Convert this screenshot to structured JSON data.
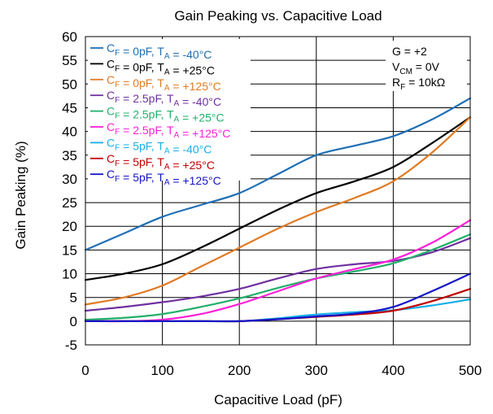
{
  "chart_data": {
    "type": "line",
    "title": "Gain Peaking vs. Capacitive Load",
    "xlabel": "Capacitive Load (pF)",
    "ylabel": "Gain Peaking (%)",
    "xlim": [
      0,
      500
    ],
    "ylim": [
      -5,
      60
    ],
    "xticks": [
      0,
      100,
      200,
      300,
      400,
      500
    ],
    "yticks": [
      -5,
      0,
      5,
      10,
      15,
      20,
      25,
      30,
      35,
      40,
      45,
      50,
      55,
      60
    ],
    "grid": true,
    "legend_position": "top-left",
    "conditions": [
      {
        "main": "G = +2",
        "sub": "",
        "rest": ""
      },
      {
        "main": "V",
        "sub": "CM",
        "rest": " = 0V"
      },
      {
        "main": "R",
        "sub": "F",
        "rest": " = 10kΩ"
      }
    ],
    "series": [
      {
        "cap": "0pF",
        "temp": "-40°C",
        "color": "#1f6fb5",
        "x": [
          0,
          50,
          100,
          150,
          200,
          250,
          300,
          350,
          400,
          450,
          500
        ],
        "values": [
          15,
          18.5,
          22,
          24.5,
          27,
          31,
          35,
          37,
          39,
          42.5,
          47
        ]
      },
      {
        "cap": "0pF",
        "temp": "+25°C",
        "color": "#000000",
        "x": [
          0,
          50,
          100,
          150,
          200,
          250,
          300,
          350,
          400,
          450,
          500
        ],
        "values": [
          8.7,
          10,
          12,
          15.5,
          19.5,
          23.5,
          27,
          29.5,
          32.5,
          37.5,
          43
        ]
      },
      {
        "cap": "0pF",
        "temp": "+125°C",
        "color": "#e07b24",
        "x": [
          0,
          50,
          100,
          150,
          200,
          250,
          300,
          350,
          400,
          450,
          500
        ],
        "values": [
          3.5,
          5,
          7.5,
          11.5,
          15.5,
          19.5,
          23,
          26,
          29.5,
          35.5,
          43
        ]
      },
      {
        "cap": "2.5pF",
        "temp": "-40°C",
        "color": "#7030a0",
        "x": [
          0,
          50,
          100,
          150,
          200,
          250,
          300,
          350,
          400,
          450,
          500
        ],
        "values": [
          2.2,
          3,
          4,
          5.2,
          6.8,
          9,
          11,
          12,
          12.7,
          14.5,
          17.5
        ]
      },
      {
        "cap": "2.5pF",
        "temp": "+25°C",
        "color": "#22b06b",
        "x": [
          0,
          50,
          100,
          150,
          200,
          250,
          300,
          350,
          400,
          450,
          500
        ],
        "values": [
          0.3,
          0.7,
          1.5,
          3,
          4.8,
          7,
          9,
          10.5,
          12.2,
          15,
          18.3
        ]
      },
      {
        "cap": "2.5pF",
        "temp": "+125°C",
        "color": "#ff1fd8",
        "x": [
          0,
          50,
          100,
          150,
          200,
          250,
          300,
          350,
          400,
          450,
          500
        ],
        "values": [
          0,
          0,
          0.3,
          1.5,
          3.6,
          6.3,
          9,
          11,
          13,
          16.5,
          21.3
        ]
      },
      {
        "cap": "5pF",
        "temp": "-40°C",
        "color": "#17aee8",
        "x": [
          0,
          50,
          100,
          150,
          200,
          250,
          300,
          350,
          400,
          450,
          500
        ],
        "values": [
          0,
          0,
          0,
          0,
          0,
          0.6,
          1.4,
          1.9,
          2.3,
          3.3,
          4.6
        ]
      },
      {
        "cap": "5pF",
        "temp": "+25°C",
        "color": "#c00000",
        "x": [
          0,
          50,
          100,
          150,
          200,
          250,
          300,
          350,
          400,
          450,
          500
        ],
        "values": [
          0,
          0,
          0,
          0,
          0,
          0.4,
          0.9,
          1.4,
          2.2,
          4.2,
          6.8
        ]
      },
      {
        "cap": "5pF",
        "temp": "+125°C",
        "color": "#1414c8",
        "x": [
          0,
          50,
          100,
          150,
          200,
          250,
          300,
          350,
          400,
          450,
          500
        ],
        "values": [
          0,
          0,
          0,
          0,
          0,
          0.4,
          1,
          1.6,
          3,
          6.3,
          10
        ]
      }
    ]
  }
}
